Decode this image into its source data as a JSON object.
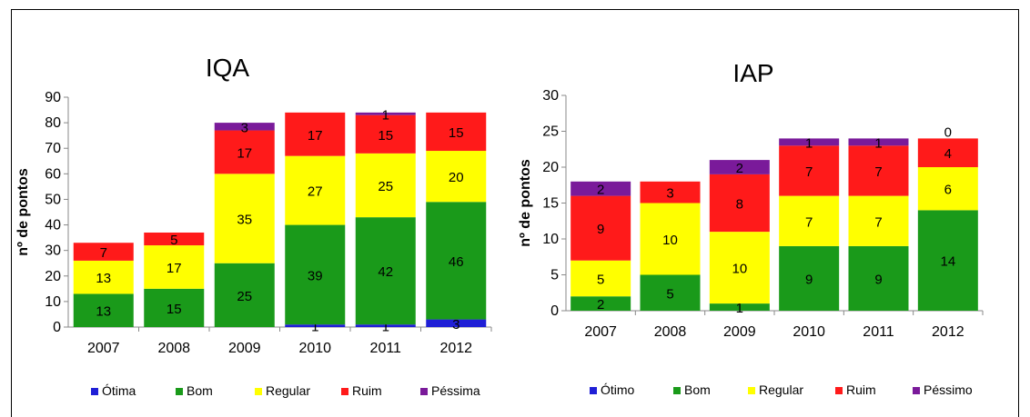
{
  "chart_data": [
    {
      "type": "bar",
      "stacked": true,
      "title": "IQA",
      "ylabel": "nº de pontos",
      "ylim": [
        0,
        90
      ],
      "yticks": [
        0,
        10,
        20,
        30,
        40,
        50,
        60,
        70,
        80,
        90
      ],
      "categories": [
        "2007",
        "2008",
        "2009",
        "2010",
        "2011",
        "2012"
      ],
      "legend_position": "bottom",
      "series": [
        {
          "name": "Ótima",
          "color": "#1f1fd6",
          "values": [
            0,
            0,
            0,
            1,
            1,
            3
          ],
          "labels": [
            "",
            "",
            "",
            "1",
            "1",
            "3"
          ]
        },
        {
          "name": "Bom",
          "color": "#1a9a1a",
          "values": [
            13,
            15,
            25,
            39,
            42,
            46
          ],
          "labels": [
            "13",
            "15",
            "25",
            "39",
            "42",
            "46"
          ]
        },
        {
          "name": "Regular",
          "color": "#ffff00",
          "values": [
            13,
            17,
            35,
            27,
            25,
            20
          ],
          "labels": [
            "13",
            "17",
            "35",
            "27",
            "25",
            "20"
          ]
        },
        {
          "name": "Ruim",
          "color": "#ff1a1a",
          "values": [
            7,
            5,
            17,
            17,
            15,
            15
          ],
          "labels": [
            "7",
            "5",
            "17",
            "17",
            "15",
            "15"
          ]
        },
        {
          "name": "Péssima",
          "color": "#7a1a9a",
          "values": [
            0,
            0,
            3,
            0,
            1,
            0
          ],
          "labels": [
            "",
            "",
            "3",
            "",
            "1",
            ""
          ]
        }
      ]
    },
    {
      "type": "bar",
      "stacked": true,
      "title": "IAP",
      "ylabel": "nº de pontos",
      "ylim": [
        0,
        30
      ],
      "yticks": [
        0,
        5,
        10,
        15,
        20,
        25,
        30
      ],
      "categories": [
        "2007",
        "2008",
        "2009",
        "2010",
        "2011",
        "2012"
      ],
      "legend_position": "bottom",
      "series": [
        {
          "name": "Ótimo",
          "color": "#1f1fd6",
          "values": [
            0,
            0,
            0,
            0,
            0,
            0
          ],
          "labels": [
            "",
            "",
            "",
            "",
            "",
            ""
          ]
        },
        {
          "name": "Bom",
          "color": "#1a9a1a",
          "values": [
            2,
            5,
            1,
            9,
            9,
            14
          ],
          "labels": [
            "2",
            "5",
            "1",
            "9",
            "9",
            "14"
          ]
        },
        {
          "name": "Regular",
          "color": "#ffff00",
          "values": [
            5,
            10,
            10,
            7,
            7,
            6
          ],
          "labels": [
            "5",
            "10",
            "10",
            "7",
            "7",
            "6"
          ]
        },
        {
          "name": "Ruim",
          "color": "#ff1a1a",
          "values": [
            9,
            3,
            8,
            7,
            7,
            4
          ],
          "labels": [
            "9",
            "3",
            "8",
            "7",
            "7",
            "4"
          ]
        },
        {
          "name": "Péssimo",
          "color": "#7a1a9a",
          "values": [
            2,
            0,
            2,
            1,
            1,
            0
          ],
          "labels": [
            "2",
            "",
            "2",
            "1",
            "1",
            "0"
          ]
        }
      ]
    }
  ]
}
